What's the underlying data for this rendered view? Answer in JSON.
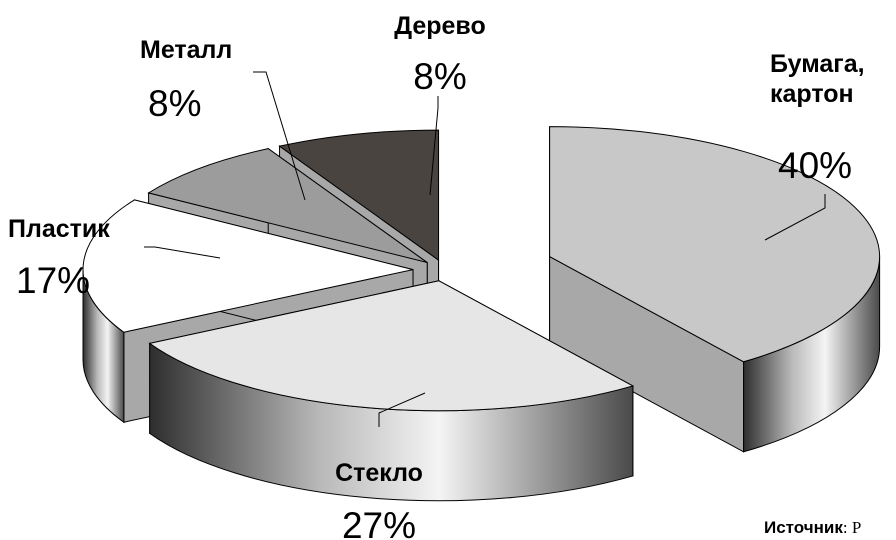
{
  "chart_data": {
    "type": "pie",
    "style": "3d-exploded",
    "title": "",
    "slices": [
      {
        "label": "Бумага,\nкартон",
        "value": 40,
        "value_label": "40%",
        "color": "#c8c8c8"
      },
      {
        "label": "Стекло",
        "value": 27,
        "value_label": "27%",
        "color": "#e6e6e6"
      },
      {
        "label": "Пластик",
        "value": 17,
        "value_label": "17%",
        "color": "#ffffff"
      },
      {
        "label": "Металл",
        "value": 8,
        "value_label": "8%",
        "color": "#9c9c9c"
      },
      {
        "label": "Дерево",
        "value": 8,
        "value_label": "8%",
        "color": "#4a4440"
      }
    ],
    "legend": "none"
  },
  "source": {
    "label": "Источник",
    "text": ": Р"
  }
}
